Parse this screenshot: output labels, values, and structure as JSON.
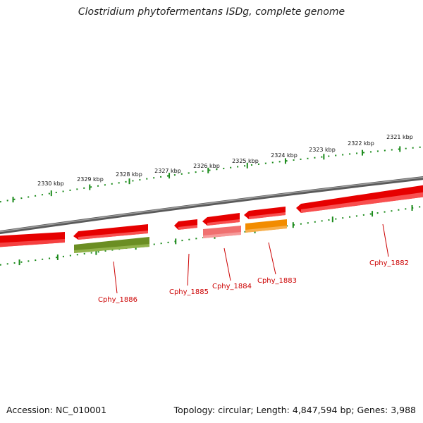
{
  "title": "Clostridium phytofermentans ISDg, complete genome",
  "footer": {
    "accession": "Accession: NC_010001",
    "summary": "Topology: circular; Length: 4,847,594 bp; Genes: 3,988"
  },
  "colors": {
    "backbone": "#7a7a7a",
    "tick": "#1a8a1a",
    "gene_red": "#e60000",
    "gene_pink": "#f07070",
    "gene_olive": "#6b8e23",
    "gene_orange": "#f28c00",
    "label_red": "#cc0000"
  },
  "scale_labels": [
    "2330 kbp",
    "2329 kbp",
    "2328 kbp",
    "2327 kbp",
    "2326 kbp",
    "2325 kbp",
    "2324 kbp",
    "2323 kbp",
    "2322 kbp",
    "2321 kbp"
  ],
  "gene_labels": [
    "Cphy_1886",
    "Cphy_1885",
    "Cphy_1884",
    "Cphy_1883",
    "Cphy_1882"
  ]
}
